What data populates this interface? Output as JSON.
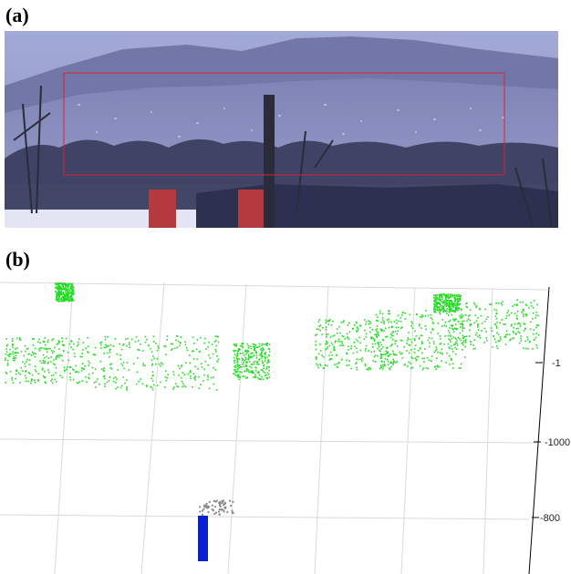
{
  "figure": {
    "panel_a_label": "(a)",
    "panel_b_label": "(b)"
  },
  "panel_b": {
    "axis_tick_labels": [
      "-1",
      "-1000",
      "-800"
    ],
    "colors": {
      "vegetation": "#22dd22",
      "smoke": "#8a8a8a",
      "chimney": "#0a1fd8",
      "grid": "#d9d9d9",
      "roi_box": "#d9223a"
    }
  }
}
